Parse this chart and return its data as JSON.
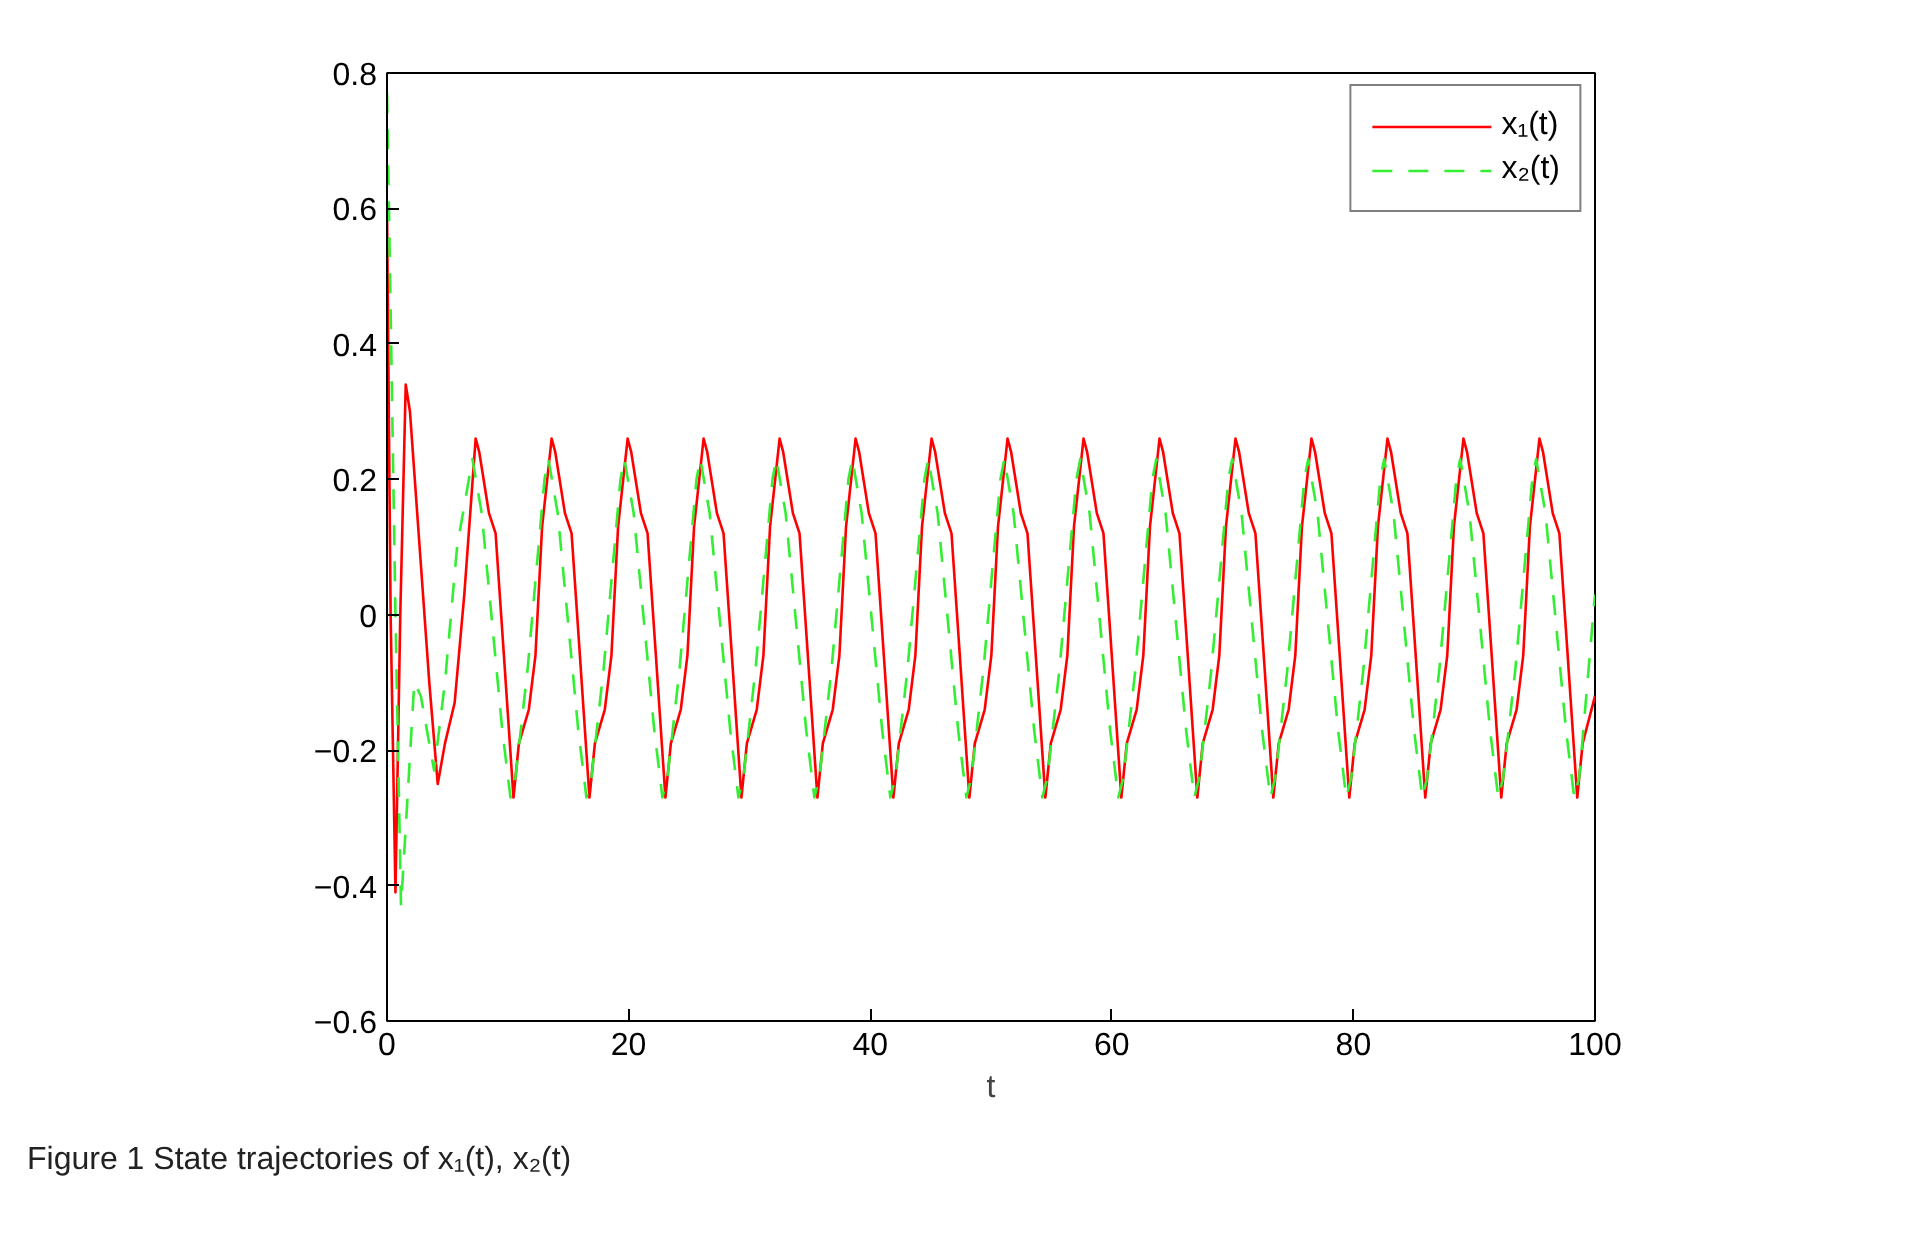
{
  "chart_data": {
    "type": "line",
    "xlabel": "t",
    "annotations": [
      "Figure 1  State trajectories of x₁(t), x₂(t)"
    ],
    "xlim": [
      0,
      100
    ],
    "xticks": [
      0,
      20,
      40,
      60,
      80,
      100
    ],
    "ylim": [
      -0.6,
      0.8
    ],
    "yticks": [
      {
        "value": -0.6,
        "label": "−0.6"
      },
      {
        "value": -0.4,
        "label": "−0.4"
      },
      {
        "value": -0.2,
        "label": "−0.2"
      },
      0,
      0.2,
      0.4,
      0.6,
      0.8
    ],
    "grid": false,
    "legend": "top right",
    "marker": "none",
    "series": [
      {
        "name": "x₁(t)",
        "color": "#ff0000",
        "line_style": "solid",
        "x": [
          0,
          0.3,
          0.7,
          1.1,
          1.55,
          1.9,
          2.7,
          3.5,
          4.2,
          4.8,
          5.6,
          6.4,
          7.34,
          7.64,
          8.44,
          8.99,
          9.64,
          10.47,
          10.92,
          11.74,
          12.29,
          12.84,
          13.63,
          13.93,
          14.73,
          15.28,
          15.93,
          16.76,
          17.21,
          18.03,
          18.58,
          19.13,
          19.92,
          20.22,
          21.02,
          21.57,
          22.22,
          23.05,
          23.5,
          24.32,
          24.87,
          25.42,
          26.21,
          26.51,
          27.31,
          27.86,
          28.51,
          29.34,
          29.79,
          30.61,
          31.16,
          31.71,
          32.5,
          32.8,
          33.6,
          34.15,
          34.8,
          35.63,
          36.08,
          36.9,
          37.45,
          38.0,
          38.79,
          39.09,
          39.89,
          40.44,
          41.09,
          41.92,
          42.37,
          43.19,
          43.74,
          44.29,
          45.08,
          45.38,
          46.18,
          46.73,
          47.38,
          48.21,
          48.66,
          49.48,
          50.03,
          50.58,
          51.37,
          51.67,
          52.47,
          53.02,
          53.67,
          54.5,
          54.95,
          55.77,
          56.32,
          56.87,
          57.66,
          57.96,
          58.76,
          59.31,
          59.96,
          60.79,
          61.24,
          62.06,
          62.61,
          63.16,
          63.95,
          64.25,
          65.05,
          65.6,
          66.25,
          67.08,
          67.53,
          68.35,
          68.9,
          69.45,
          70.24,
          70.54,
          71.34,
          71.89,
          72.54,
          73.37,
          73.82,
          74.64,
          75.19,
          75.74,
          76.53,
          76.83,
          77.63,
          78.18,
          78.83,
          79.66,
          80.11,
          80.93,
          81.48,
          82.03,
          82.82,
          83.12,
          83.92,
          84.47,
          85.12,
          85.95,
          86.4,
          87.22,
          87.77,
          88.32,
          89.11,
          89.41,
          90.21,
          90.76,
          91.41,
          92.24,
          92.69,
          93.51,
          94.06,
          94.61,
          95.4,
          95.7,
          96.5,
          97.05,
          97.7,
          98.53,
          98.98,
          100
        ],
        "values": [
          0.6,
          0.0,
          -0.41,
          0.0,
          0.34,
          0.3,
          0.1,
          -0.1,
          -0.25,
          -0.19,
          -0.13,
          0.03,
          0.26,
          0.24,
          0.15,
          0.12,
          -0.05,
          -0.27,
          -0.19,
          -0.14,
          -0.06,
          0.13,
          0.26,
          0.24,
          0.15,
          0.12,
          -0.05,
          -0.27,
          -0.19,
          -0.14,
          -0.06,
          0.13,
          0.26,
          0.24,
          0.15,
          0.12,
          -0.05,
          -0.27,
          -0.19,
          -0.14,
          -0.06,
          0.13,
          0.26,
          0.24,
          0.15,
          0.12,
          -0.05,
          -0.27,
          -0.19,
          -0.14,
          -0.06,
          0.13,
          0.26,
          0.24,
          0.15,
          0.12,
          -0.05,
          -0.27,
          -0.19,
          -0.14,
          -0.06,
          0.13,
          0.26,
          0.24,
          0.15,
          0.12,
          -0.05,
          -0.27,
          -0.19,
          -0.14,
          -0.06,
          0.13,
          0.26,
          0.24,
          0.15,
          0.12,
          -0.05,
          -0.27,
          -0.19,
          -0.14,
          -0.06,
          0.13,
          0.26,
          0.24,
          0.15,
          0.12,
          -0.05,
          -0.27,
          -0.19,
          -0.14,
          -0.06,
          0.13,
          0.26,
          0.24,
          0.15,
          0.12,
          -0.05,
          -0.27,
          -0.19,
          -0.14,
          -0.06,
          0.13,
          0.26,
          0.24,
          0.15,
          0.12,
          -0.05,
          -0.27,
          -0.19,
          -0.14,
          -0.06,
          0.13,
          0.26,
          0.24,
          0.15,
          0.12,
          -0.05,
          -0.27,
          -0.19,
          -0.14,
          -0.06,
          0.13,
          0.26,
          0.24,
          0.15,
          0.12,
          -0.05,
          -0.27,
          -0.19,
          -0.14,
          -0.06,
          0.13,
          0.26,
          0.24,
          0.15,
          0.12,
          -0.05,
          -0.27,
          -0.19,
          -0.14,
          -0.06,
          0.13,
          0.26,
          0.24,
          0.15,
          0.12,
          -0.05,
          -0.27,
          -0.19,
          -0.14,
          -0.06,
          0.13,
          0.26,
          0.24,
          0.15,
          0.12,
          -0.05,
          -0.27,
          -0.19,
          -0.12
        ]
      },
      {
        "name": "x₂(t)",
        "color": "#33ee33",
        "line_style": "dashed",
        "x": [
          0,
          0.3,
          0.7,
          1.16,
          1.6,
          2.26,
          2.8,
          3.9,
          4.8,
          5.8,
          7.07,
          7.84,
          8.64,
          9.54,
          10.22,
          10.64,
          11.64,
          12.54,
          13.04,
          13.36,
          14.13,
          14.93,
          15.83,
          16.51,
          16.93,
          17.93,
          18.83,
          19.33,
          19.65,
          20.42,
          21.22,
          22.12,
          22.8,
          23.22,
          24.22,
          25.12,
          25.62,
          25.94,
          26.71,
          27.51,
          28.41,
          29.09,
          29.51,
          30.51,
          31.41,
          31.91,
          32.23,
          33.0,
          33.8,
          34.7,
          35.38,
          35.8,
          36.8,
          37.7,
          38.2,
          38.52,
          39.29,
          40.09,
          40.99,
          41.67,
          42.09,
          43.09,
          43.99,
          44.49,
          44.81,
          45.58,
          46.38,
          47.28,
          47.96,
          48.38,
          49.38,
          50.28,
          50.78,
          51.1,
          51.87,
          52.67,
          53.57,
          54.25,
          54.67,
          55.67,
          56.57,
          57.07,
          57.39,
          58.16,
          58.96,
          59.86,
          60.54,
          60.96,
          61.96,
          62.86,
          63.36,
          63.68,
          64.45,
          65.25,
          66.15,
          66.83,
          67.25,
          68.25,
          69.15,
          69.65,
          69.97,
          70.74,
          71.54,
          72.44,
          73.12,
          73.54,
          74.54,
          75.44,
          75.94,
          76.26,
          77.03,
          77.83,
          78.73,
          79.41,
          79.83,
          80.83,
          81.73,
          82.23,
          82.55,
          83.32,
          84.12,
          85.02,
          85.7,
          86.12,
          87.12,
          88.02,
          88.52,
          88.84,
          89.61,
          90.41,
          91.31,
          91.99,
          92.41,
          93.41,
          94.31,
          94.81,
          95.13,
          95.9,
          96.7,
          97.6,
          98.28,
          98.7,
          100
        ],
        "values": [
          0.77,
          0.45,
          0.0,
          -0.43,
          -0.3,
          -0.1,
          -0.12,
          -0.23,
          -0.1,
          0.1,
          0.23,
          0.15,
          0.0,
          -0.17,
          -0.27,
          -0.24,
          -0.08,
          0.1,
          0.2,
          0.23,
          0.15,
          0.0,
          -0.17,
          -0.27,
          -0.24,
          -0.08,
          0.1,
          0.2,
          0.23,
          0.15,
          0.0,
          -0.17,
          -0.27,
          -0.24,
          -0.08,
          0.1,
          0.2,
          0.23,
          0.15,
          0.0,
          -0.17,
          -0.27,
          -0.24,
          -0.08,
          0.1,
          0.2,
          0.23,
          0.15,
          0.0,
          -0.17,
          -0.27,
          -0.24,
          -0.08,
          0.1,
          0.2,
          0.23,
          0.15,
          0.0,
          -0.17,
          -0.27,
          -0.24,
          -0.08,
          0.1,
          0.2,
          0.23,
          0.15,
          0.0,
          -0.17,
          -0.27,
          -0.24,
          -0.08,
          0.1,
          0.2,
          0.23,
          0.15,
          0.0,
          -0.17,
          -0.27,
          -0.24,
          -0.08,
          0.1,
          0.2,
          0.23,
          0.15,
          0.0,
          -0.17,
          -0.27,
          -0.24,
          -0.08,
          0.1,
          0.2,
          0.23,
          0.15,
          0.0,
          -0.17,
          -0.27,
          -0.24,
          -0.08,
          0.1,
          0.2,
          0.23,
          0.15,
          0.0,
          -0.17,
          -0.27,
          -0.24,
          -0.08,
          0.1,
          0.2,
          0.23,
          0.15,
          0.0,
          -0.17,
          -0.27,
          -0.24,
          -0.08,
          0.1,
          0.2,
          0.23,
          0.15,
          0.0,
          -0.17,
          -0.27,
          -0.24,
          -0.08,
          0.1,
          0.2,
          0.23,
          0.15,
          0.0,
          -0.17,
          -0.27,
          -0.24,
          -0.08,
          0.1,
          0.2,
          0.23,
          0.15,
          0.0,
          -0.17,
          -0.27,
          -0.24,
          0.03
        ]
      }
    ]
  }
}
